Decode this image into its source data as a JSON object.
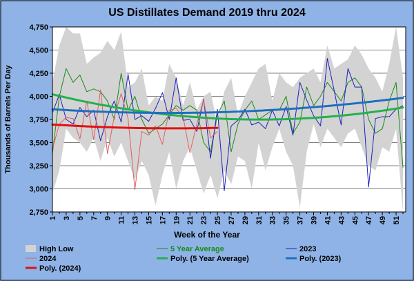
{
  "chart_data": {
    "type": "line",
    "title": "US Distillates Demand 2019 thru 2024",
    "xlabel": "Week of the Year",
    "ylabel": "Thousands of Barrels Per Day",
    "ylim": [
      2750,
      4750
    ],
    "xlim": [
      1,
      52
    ],
    "y_ticks": [
      "2,750",
      "3,000",
      "3,250",
      "3,500",
      "3,750",
      "4,000",
      "4,250",
      "4,500",
      "4,750"
    ],
    "x_ticks": [
      "1",
      "3",
      "5",
      "7",
      "9",
      "11",
      "13",
      "15",
      "17",
      "19",
      "21",
      "23",
      "25",
      "27",
      "29",
      "31",
      "33",
      "35",
      "37",
      "39",
      "41",
      "43",
      "45",
      "47",
      "49",
      "51"
    ],
    "grid": "horizontal",
    "legend_position": "bottom",
    "colors": {
      "background": "#8fb3e6",
      "plot_background": "#ffffff",
      "range_fill": "#d3d3d3",
      "five_year": "#1a8a1a",
      "poly_five_year": "#22b14c",
      "y2023": "#1f1fbf",
      "poly_2023": "#1f6fbf",
      "y2024": "#e06060",
      "poly_2024": "#e01010"
    },
    "legend": [
      {
        "key": "high_low",
        "label": "High Low"
      },
      {
        "key": "five_year",
        "label": "5 Year Average"
      },
      {
        "key": "y2023",
        "label": "2023"
      },
      {
        "key": "y2024",
        "label": "2024"
      },
      {
        "key": "poly_five_year",
        "label": "Poly. (5 Year Average)"
      },
      {
        "key": "poly_2023",
        "label": "Poly. (2023)"
      },
      {
        "key": "poly_2024",
        "label": "Poly. (2024)"
      }
    ],
    "series": [
      {
        "name": "High Low",
        "type": "band",
        "x": [
          1,
          2,
          3,
          4,
          5,
          6,
          7,
          8,
          9,
          10,
          11,
          12,
          13,
          14,
          15,
          16,
          17,
          18,
          19,
          20,
          21,
          22,
          23,
          24,
          25,
          26,
          27,
          28,
          29,
          30,
          31,
          32,
          33,
          34,
          35,
          36,
          37,
          38,
          39,
          40,
          41,
          42,
          43,
          44,
          45,
          46,
          47,
          48,
          49,
          50,
          51,
          52
        ],
        "high": [
          4150,
          4550,
          4750,
          4680,
          4680,
          4350,
          4420,
          4470,
          4600,
          4500,
          4700,
          4100,
          4150,
          4300,
          3900,
          4000,
          3950,
          4350,
          4200,
          3900,
          4150,
          3850,
          4000,
          4050,
          3700,
          4050,
          4200,
          3800,
          4000,
          4150,
          4300,
          4350,
          3950,
          4250,
          4150,
          4100,
          4200,
          4250,
          4300,
          4150,
          4550,
          4300,
          4350,
          4400,
          4550,
          4450,
          4300,
          4200,
          4050,
          4350,
          4750,
          4200
        ],
        "low": [
          2950,
          3200,
          3650,
          3550,
          3500,
          3400,
          3550,
          3300,
          3550,
          3350,
          3500,
          3300,
          3100,
          3300,
          3150,
          2820,
          3150,
          3400,
          3000,
          3300,
          3450,
          3200,
          2950,
          3150,
          2900,
          3200,
          3050,
          3350,
          3300,
          3000,
          3500,
          3200,
          3450,
          3650,
          3400,
          3250,
          2800,
          3400,
          3700,
          3450,
          3650,
          3550,
          3450,
          3600,
          3650,
          3450,
          3250,
          3200,
          3450,
          3400,
          3650,
          2750
        ]
      },
      {
        "name": "5 Year Average",
        "x": [
          1,
          2,
          3,
          4,
          5,
          6,
          7,
          8,
          9,
          10,
          11,
          12,
          13,
          14,
          15,
          16,
          17,
          18,
          19,
          20,
          21,
          22,
          23,
          24,
          25,
          26,
          27,
          28,
          29,
          30,
          31,
          32,
          33,
          34,
          35,
          36,
          37,
          38,
          39,
          40,
          41,
          42,
          43,
          44,
          45,
          46,
          47,
          48,
          49,
          50,
          51,
          52
        ],
        "values": [
          3380,
          4000,
          4300,
          4150,
          4230,
          4050,
          4080,
          4050,
          3950,
          3750,
          4250,
          3850,
          4000,
          3750,
          3600,
          3650,
          3700,
          3800,
          3900,
          3850,
          3900,
          3850,
          3500,
          3400,
          3800,
          3950,
          3400,
          3700,
          3850,
          3950,
          3750,
          3800,
          3850,
          3850,
          4000,
          3600,
          3720,
          4100,
          3900,
          4000,
          4150,
          4050,
          3950,
          4150,
          4200,
          4100,
          3750,
          3600,
          3650,
          3950,
          4150,
          3230
        ]
      },
      {
        "name": "2023",
        "x": [
          1,
          2,
          3,
          4,
          5,
          6,
          7,
          8,
          9,
          10,
          11,
          12,
          13,
          14,
          15,
          16,
          17,
          18,
          19,
          20,
          21,
          22,
          23,
          24,
          25,
          26,
          27,
          28,
          29,
          30,
          31,
          32,
          33,
          34,
          35,
          36,
          37,
          38,
          39,
          40,
          41,
          42,
          43,
          44,
          45,
          46,
          47,
          48,
          49,
          50,
          51,
          52
        ],
        "values": [
          3820,
          4020,
          3750,
          3700,
          3880,
          3780,
          3850,
          3520,
          3780,
          3950,
          3720,
          4240,
          3750,
          3790,
          3730,
          3870,
          4040,
          3750,
          4200,
          3740,
          3750,
          3620,
          3970,
          3330,
          3860,
          2980,
          3680,
          3740,
          3860,
          3690,
          3720,
          3650,
          3850,
          3680,
          3890,
          3580,
          4150,
          3960,
          3790,
          3680,
          4410,
          4060,
          3690,
          4300,
          4100,
          4100,
          3020,
          3760,
          3780,
          3780,
          3860,
          3900
        ]
      },
      {
        "name": "2024",
        "x": [
          1,
          2,
          3,
          4,
          5,
          6,
          7,
          8,
          9,
          10,
          11,
          12,
          13,
          14,
          15,
          16,
          17,
          18,
          19,
          20,
          21,
          22,
          23,
          24,
          25
        ],
        "values": [
          3430,
          3700,
          3770,
          3760,
          3540,
          3950,
          3530,
          4070,
          3380,
          3780,
          4030,
          3760,
          2990,
          3620,
          3580,
          3680,
          3480,
          3850,
          3870,
          3780,
          3390,
          3700,
          3960,
          3550,
          3620
        ]
      },
      {
        "name": "Poly. (5 Year Average)",
        "type": "trend",
        "x_range": [
          1,
          52
        ],
        "equation": "y = 4040 - 18.69*x + 0.3*x^2"
      },
      {
        "name": "Poly. (2023)",
        "type": "trend",
        "x_range": [
          1,
          52
        ],
        "equation": "y = 3865 - 5*x + 0.14*x^2"
      },
      {
        "name": "Poly. (2024)",
        "type": "trend",
        "x_range": [
          1,
          25
        ],
        "equation": "y = 3700 - 4.99*x + 0.134*x^2"
      }
    ]
  }
}
